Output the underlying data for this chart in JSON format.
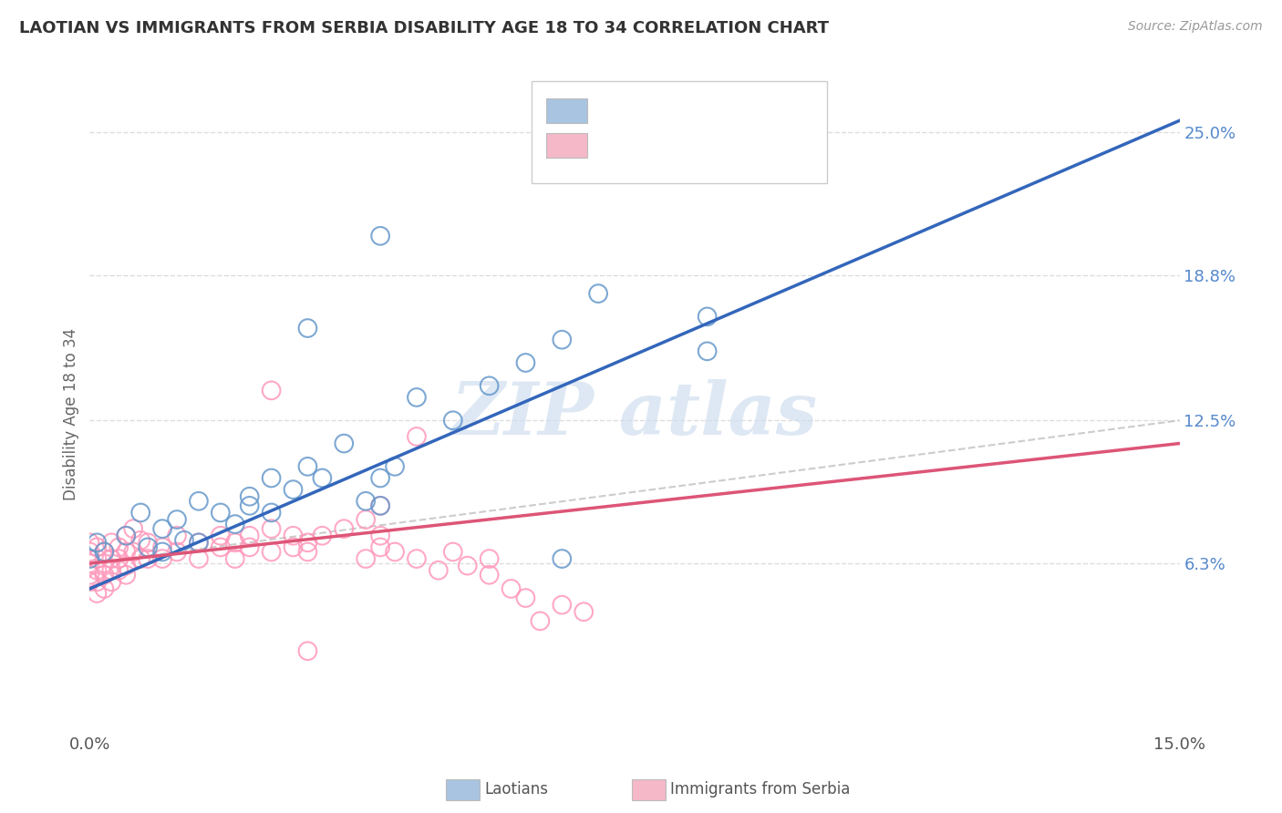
{
  "title": "LAOTIAN VS IMMIGRANTS FROM SERBIA DISABILITY AGE 18 TO 34 CORRELATION CHART",
  "source": "Source: ZipAtlas.com",
  "ylabel": "Disability Age 18 to 34",
  "xlim": [
    0.0,
    0.15
  ],
  "ylim": [
    -0.01,
    0.265
  ],
  "xtick_positions": [
    0.0,
    0.15
  ],
  "xtick_labels": [
    "0.0%",
    "15.0%"
  ],
  "ytick_vals": [
    0.063,
    0.125,
    0.188,
    0.25
  ],
  "ytick_labels": [
    "6.3%",
    "12.5%",
    "18.8%",
    "25.0%"
  ],
  "laotian_scatter": [
    [
      0.0,
      0.065
    ],
    [
      0.001,
      0.072
    ],
    [
      0.002,
      0.068
    ],
    [
      0.005,
      0.075
    ],
    [
      0.007,
      0.085
    ],
    [
      0.008,
      0.07
    ],
    [
      0.01,
      0.078
    ],
    [
      0.01,
      0.068
    ],
    [
      0.012,
      0.082
    ],
    [
      0.013,
      0.073
    ],
    [
      0.015,
      0.09
    ],
    [
      0.015,
      0.072
    ],
    [
      0.018,
      0.085
    ],
    [
      0.02,
      0.08
    ],
    [
      0.022,
      0.092
    ],
    [
      0.022,
      0.088
    ],
    [
      0.025,
      0.1
    ],
    [
      0.025,
      0.085
    ],
    [
      0.028,
      0.095
    ],
    [
      0.03,
      0.105
    ],
    [
      0.032,
      0.1
    ],
    [
      0.035,
      0.115
    ],
    [
      0.038,
      0.09
    ],
    [
      0.04,
      0.1
    ],
    [
      0.04,
      0.088
    ],
    [
      0.042,
      0.105
    ],
    [
      0.045,
      0.135
    ],
    [
      0.05,
      0.125
    ],
    [
      0.055,
      0.14
    ],
    [
      0.06,
      0.15
    ],
    [
      0.065,
      0.16
    ],
    [
      0.07,
      0.18
    ],
    [
      0.085,
      0.17
    ],
    [
      0.04,
      0.205
    ],
    [
      0.03,
      0.165
    ],
    [
      0.065,
      0.065
    ],
    [
      0.085,
      0.155
    ]
  ],
  "serbia_scatter": [
    [
      0.0,
      0.068
    ],
    [
      0.0,
      0.063
    ],
    [
      0.0,
      0.058
    ],
    [
      0.0,
      0.072
    ],
    [
      0.0,
      0.055
    ],
    [
      0.001,
      0.07
    ],
    [
      0.001,
      0.065
    ],
    [
      0.001,
      0.06
    ],
    [
      0.001,
      0.055
    ],
    [
      0.001,
      0.05
    ],
    [
      0.002,
      0.068
    ],
    [
      0.002,
      0.063
    ],
    [
      0.002,
      0.058
    ],
    [
      0.002,
      0.052
    ],
    [
      0.003,
      0.072
    ],
    [
      0.003,
      0.065
    ],
    [
      0.003,
      0.06
    ],
    [
      0.003,
      0.055
    ],
    [
      0.004,
      0.07
    ],
    [
      0.004,
      0.065
    ],
    [
      0.004,
      0.06
    ],
    [
      0.005,
      0.075
    ],
    [
      0.005,
      0.068
    ],
    [
      0.005,
      0.062
    ],
    [
      0.005,
      0.058
    ],
    [
      0.006,
      0.078
    ],
    [
      0.006,
      0.068
    ],
    [
      0.007,
      0.073
    ],
    [
      0.007,
      0.065
    ],
    [
      0.008,
      0.072
    ],
    [
      0.008,
      0.065
    ],
    [
      0.01,
      0.07
    ],
    [
      0.01,
      0.065
    ],
    [
      0.012,
      0.075
    ],
    [
      0.012,
      0.068
    ],
    [
      0.015,
      0.072
    ],
    [
      0.015,
      0.065
    ],
    [
      0.018,
      0.07
    ],
    [
      0.018,
      0.075
    ],
    [
      0.02,
      0.072
    ],
    [
      0.02,
      0.065
    ],
    [
      0.022,
      0.07
    ],
    [
      0.022,
      0.075
    ],
    [
      0.025,
      0.078
    ],
    [
      0.025,
      0.068
    ],
    [
      0.028,
      0.075
    ],
    [
      0.028,
      0.07
    ],
    [
      0.03,
      0.072
    ],
    [
      0.03,
      0.068
    ],
    [
      0.032,
      0.075
    ],
    [
      0.035,
      0.078
    ],
    [
      0.038,
      0.065
    ],
    [
      0.04,
      0.07
    ],
    [
      0.04,
      0.075
    ],
    [
      0.042,
      0.068
    ],
    [
      0.045,
      0.065
    ],
    [
      0.045,
      0.118
    ],
    [
      0.048,
      0.06
    ],
    [
      0.05,
      0.068
    ],
    [
      0.052,
      0.062
    ],
    [
      0.055,
      0.058
    ],
    [
      0.055,
      0.065
    ],
    [
      0.058,
      0.052
    ],
    [
      0.06,
      0.048
    ],
    [
      0.025,
      0.138
    ],
    [
      0.038,
      0.082
    ],
    [
      0.04,
      0.088
    ],
    [
      0.065,
      0.045
    ],
    [
      0.062,
      0.038
    ],
    [
      0.068,
      0.042
    ],
    [
      0.03,
      0.025
    ]
  ],
  "laotian_line": [
    [
      0.0,
      0.052
    ],
    [
      0.15,
      0.255
    ]
  ],
  "serbia_line": [
    [
      0.0,
      0.063
    ],
    [
      0.15,
      0.115
    ]
  ],
  "diagonal_line": [
    [
      0.0,
      0.063
    ],
    [
      0.15,
      0.125
    ]
  ],
  "laotian_color": "#6699cc",
  "serbia_color": "#ff99bb",
  "laotian_line_color": "#3366bb",
  "serbia_line_color": "#dd5577",
  "diagonal_line_color": "#cccccc",
  "background_color": "#ffffff",
  "grid_color": "#dddddd",
  "watermark_color": "#d0dff0"
}
